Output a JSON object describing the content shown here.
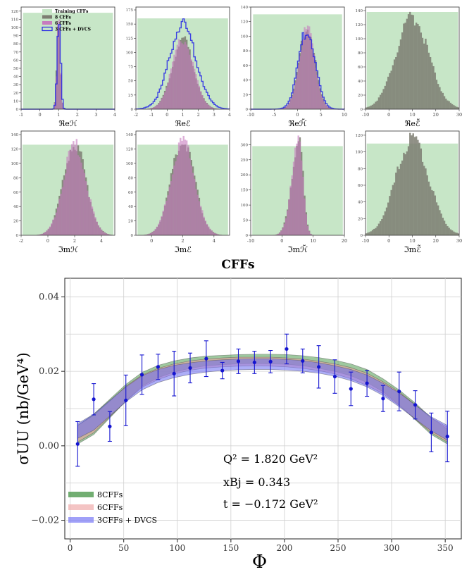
{
  "figure_title": "CFFs",
  "chart_data": [
    {
      "type": "histogram",
      "panel": "ReH",
      "xlabel": "ℜeℋ",
      "xlim": [
        -1,
        4
      ],
      "ylim": [
        0,
        125
      ],
      "xticks": [
        -1,
        0,
        1,
        2,
        3,
        4
      ],
      "yticks": [
        0,
        10,
        20,
        30,
        40,
        50,
        60,
        70,
        80,
        90,
        100,
        110,
        120
      ],
      "training_band": [
        -0.9,
        3.9
      ],
      "training_height": 118,
      "legend": [
        "Training CFFs",
        "8 CFFs",
        "6 CFFs",
        "3 CFFs + DVCS"
      ],
      "series": [
        {
          "name": "8 CFFs",
          "center": 1.0,
          "width": 0.09,
          "peak": 118
        },
        {
          "name": "6 CFFs",
          "center": 1.0,
          "width": 0.09,
          "peak": 114
        },
        {
          "name": "3 CFFs + DVCS",
          "center": 1.02,
          "width": 0.09,
          "peak": 112
        }
      ]
    },
    {
      "type": "histogram",
      "panel": "ReE",
      "xlabel": "ℜeℰ",
      "xlim": [
        -2,
        4
      ],
      "ylim": [
        0,
        180
      ],
      "xticks": [
        -2,
        -1,
        0,
        1,
        2,
        3,
        4
      ],
      "yticks": [
        0,
        25,
        50,
        75,
        100,
        125,
        150,
        175
      ],
      "training_band": [
        -1.9,
        3.9
      ],
      "training_height": 160,
      "series": [
        {
          "name": "8 CFFs",
          "center": 1.0,
          "width": 0.7,
          "peak": 122
        },
        {
          "name": "6 CFFs",
          "center": 1.0,
          "width": 0.7,
          "peak": 122
        },
        {
          "name": "3 CFFs + DVCS",
          "center": 1.0,
          "width": 0.85,
          "peak": 148
        }
      ]
    },
    {
      "type": "histogram",
      "panel": "ReHt",
      "xlabel": "ℜeℋ̃",
      "xlim": [
        -10,
        10
      ],
      "ylim": [
        0,
        140
      ],
      "xticks": [
        -10,
        -5,
        0,
        5,
        10
      ],
      "yticks": [
        0,
        20,
        40,
        60,
        80,
        100,
        120,
        140
      ],
      "training_band": [
        -9.5,
        9.5
      ],
      "training_height": 130,
      "series": [
        {
          "name": "8 CFFs",
          "center": 2.0,
          "width": 1.7,
          "peak": 112
        },
        {
          "name": "6 CFFs",
          "center": 2.0,
          "width": 1.7,
          "peak": 110
        },
        {
          "name": "3 CFFs + DVCS",
          "center": 2.0,
          "width": 1.8,
          "peak": 108
        }
      ]
    },
    {
      "type": "histogram",
      "panel": "ReEt",
      "xlabel": "ℜeℰ̃",
      "xlim": [
        -10,
        30
      ],
      "ylim": [
        0,
        145
      ],
      "xticks": [
        -10,
        0,
        10,
        20,
        30
      ],
      "yticks": [
        0,
        20,
        40,
        60,
        80,
        100,
        120,
        140
      ],
      "training_band": [
        -9.5,
        29.5
      ],
      "training_height": 138,
      "series": [
        {
          "name": "8 CFFs",
          "center": 10.0,
          "width": 7.0,
          "peak": 130
        }
      ]
    },
    {
      "type": "histogram",
      "panel": "ImH",
      "xlabel": "ℑmℋ",
      "xlim": [
        -2,
        5
      ],
      "ylim": [
        0,
        145
      ],
      "xticks": [
        -2,
        0,
        2,
        4
      ],
      "yticks": [
        0,
        20,
        40,
        60,
        80,
        100,
        120,
        140
      ],
      "training_band": [
        -1.9,
        4.9
      ],
      "training_height": 126,
      "series": [
        {
          "name": "8 CFFs",
          "center": 2.0,
          "width": 0.85,
          "peak": 128
        },
        {
          "name": "6 CFFs",
          "center": 2.0,
          "width": 0.85,
          "peak": 126
        }
      ]
    },
    {
      "type": "histogram",
      "panel": "ImE",
      "xlabel": "ℑmℰ",
      "xlim": [
        -1,
        5
      ],
      "ylim": [
        0,
        145
      ],
      "xticks": [
        0,
        2,
        4
      ],
      "yticks": [
        0,
        20,
        40,
        60,
        80,
        100,
        120,
        140
      ],
      "training_band": [
        -0.9,
        4.9
      ],
      "training_height": 126,
      "series": [
        {
          "name": "8 CFFs",
          "center": 2.0,
          "width": 0.75,
          "peak": 132
        },
        {
          "name": "6 CFFs",
          "center": 2.0,
          "width": 0.75,
          "peak": 130
        }
      ]
    },
    {
      "type": "histogram",
      "panel": "ImHt",
      "xlabel": "ℑmℋ̃",
      "xlim": [
        -10,
        20
      ],
      "ylim": [
        0,
        345
      ],
      "xticks": [
        -10,
        0,
        10,
        20
      ],
      "yticks": [
        0,
        50,
        100,
        150,
        200,
        250,
        300
      ],
      "training_band": [
        -9.5,
        19.5
      ],
      "training_height": 295,
      "series": [
        {
          "name": "8 CFFs",
          "center": 5.5,
          "width": 1.3,
          "peak": 320,
          "skew": "left"
        },
        {
          "name": "6 CFFs",
          "center": 5.5,
          "width": 1.3,
          "peak": 310,
          "skew": "left"
        }
      ]
    },
    {
      "type": "histogram",
      "panel": "ImEt",
      "xlabel": "ℑmℰ̃",
      "xlim": [
        -10,
        30
      ],
      "ylim": [
        0,
        125
      ],
      "xticks": [
        -10,
        0,
        10,
        20,
        30
      ],
      "yticks": [
        0,
        20,
        40,
        60,
        80,
        100,
        120
      ],
      "training_band": [
        -9.5,
        29.5
      ],
      "training_height": 110,
      "series": [
        {
          "name": "8 CFFs",
          "center": 10.0,
          "width": 7.0,
          "peak": 115
        }
      ]
    },
    {
      "type": "line",
      "panel": "cross-section",
      "xlabel": "Φ",
      "ylabel": "σUU (nb/GeV⁴)",
      "xlim": [
        -5,
        365
      ],
      "ylim": [
        -0.025,
        0.045
      ],
      "xticks": [
        0,
        50,
        100,
        150,
        200,
        250,
        300,
        350
      ],
      "yticks": [
        -0.02,
        0.0,
        0.02,
        0.04
      ],
      "ytick_labels": [
        "−0.02",
        "0.00",
        "0.02",
        "0.04"
      ],
      "annotation": {
        "q2": "Q² = 1.820 GeV²",
        "xbj": "xBj = 0.343",
        "t": "t = −0.172 GeV²"
      },
      "legend": [
        "8CFFs",
        "6CFFs",
        "3CFFs + DVCS"
      ],
      "bands": [
        {
          "name": "8CFFs",
          "color": "#4f9a4f",
          "x": [
            7,
            22,
            37,
            52,
            67,
            82,
            97,
            112,
            127,
            142,
            157,
            172,
            187,
            202,
            217,
            232,
            247,
            262,
            277,
            292,
            307,
            322,
            337,
            352
          ],
          "lower": [
            0.0005,
            0.003,
            0.0075,
            0.012,
            0.016,
            0.0183,
            0.0198,
            0.0208,
            0.0215,
            0.0218,
            0.022,
            0.0221,
            0.022,
            0.0219,
            0.0215,
            0.0208,
            0.02,
            0.0188,
            0.017,
            0.0145,
            0.011,
            0.007,
            0.003,
            0.0005
          ],
          "upper": [
            0.0055,
            0.0085,
            0.0125,
            0.0165,
            0.0197,
            0.0216,
            0.0228,
            0.0236,
            0.0241,
            0.0243,
            0.0245,
            0.0246,
            0.0246,
            0.0245,
            0.0242,
            0.0237,
            0.023,
            0.022,
            0.0205,
            0.018,
            0.015,
            0.0115,
            0.0075,
            0.0045
          ]
        },
        {
          "name": "6CFFs",
          "color": "#f0a0a0",
          "x": [
            7,
            22,
            37,
            52,
            67,
            82,
            97,
            112,
            127,
            142,
            157,
            172,
            187,
            202,
            217,
            232,
            247,
            262,
            277,
            292,
            307,
            322,
            337,
            352
          ],
          "lower": [
            0.001,
            0.0035,
            0.0078,
            0.012,
            0.0157,
            0.0178,
            0.0193,
            0.0203,
            0.0209,
            0.0212,
            0.0214,
            0.0215,
            0.0214,
            0.0212,
            0.0208,
            0.0202,
            0.0193,
            0.018,
            0.0162,
            0.014,
            0.0108,
            0.0072,
            0.0035,
            0.001
          ],
          "upper": [
            0.0055,
            0.0082,
            0.012,
            0.016,
            0.019,
            0.0208,
            0.022,
            0.0228,
            0.0233,
            0.0236,
            0.0238,
            0.0238,
            0.0238,
            0.0236,
            0.0233,
            0.0227,
            0.022,
            0.021,
            0.0195,
            0.0172,
            0.0145,
            0.011,
            0.0075,
            0.005
          ]
        },
        {
          "name": "3CFFs + DVCS",
          "color": "#6a6af0",
          "x": [
            7,
            22,
            37,
            52,
            67,
            82,
            97,
            112,
            127,
            142,
            157,
            172,
            187,
            202,
            217,
            232,
            247,
            262,
            277,
            292,
            307,
            322,
            337,
            352
          ],
          "lower": [
            0.002,
            0.0042,
            0.008,
            0.0118,
            0.015,
            0.017,
            0.0183,
            0.0192,
            0.0198,
            0.0202,
            0.0204,
            0.0205,
            0.0205,
            0.0203,
            0.02,
            0.0195,
            0.0187,
            0.0175,
            0.0158,
            0.0135,
            0.0105,
            0.0072,
            0.004,
            0.0015
          ],
          "upper": [
            0.006,
            0.0085,
            0.0122,
            0.0158,
            0.0188,
            0.0205,
            0.0216,
            0.0223,
            0.0228,
            0.0231,
            0.0233,
            0.0234,
            0.0234,
            0.0232,
            0.0229,
            0.0223,
            0.0215,
            0.0205,
            0.019,
            0.0168,
            0.0142,
            0.011,
            0.0078,
            0.0055
          ]
        }
      ],
      "points": {
        "x": [
          7,
          22,
          37,
          52,
          67,
          82,
          97,
          112,
          127,
          142,
          157,
          172,
          187,
          202,
          217,
          232,
          247,
          262,
          277,
          292,
          307,
          322,
          337,
          352
        ],
        "y": [
          0.0005,
          0.0125,
          0.0052,
          0.0122,
          0.0191,
          0.0212,
          0.0194,
          0.0209,
          0.0234,
          0.0202,
          0.0227,
          0.0224,
          0.0226,
          0.026,
          0.0228,
          0.0212,
          0.0186,
          0.0153,
          0.0168,
          0.0127,
          0.0146,
          0.011,
          0.0036,
          0.0025
        ],
        "err": [
          0.006,
          0.0042,
          0.004,
          0.0068,
          0.0053,
          0.0034,
          0.006,
          0.004,
          0.0048,
          0.0022,
          0.0033,
          0.003,
          0.003,
          0.004,
          0.0032,
          0.0057,
          0.0045,
          0.0045,
          0.0035,
          0.0035,
          0.0052,
          0.0038,
          0.0052,
          0.0068
        ]
      }
    }
  ],
  "colors": {
    "training": "#c7e6c7",
    "cff8": "#7d7d72",
    "cff6": "#c77bbf",
    "dvcs": "#2424e6",
    "points": "#1414d0"
  }
}
